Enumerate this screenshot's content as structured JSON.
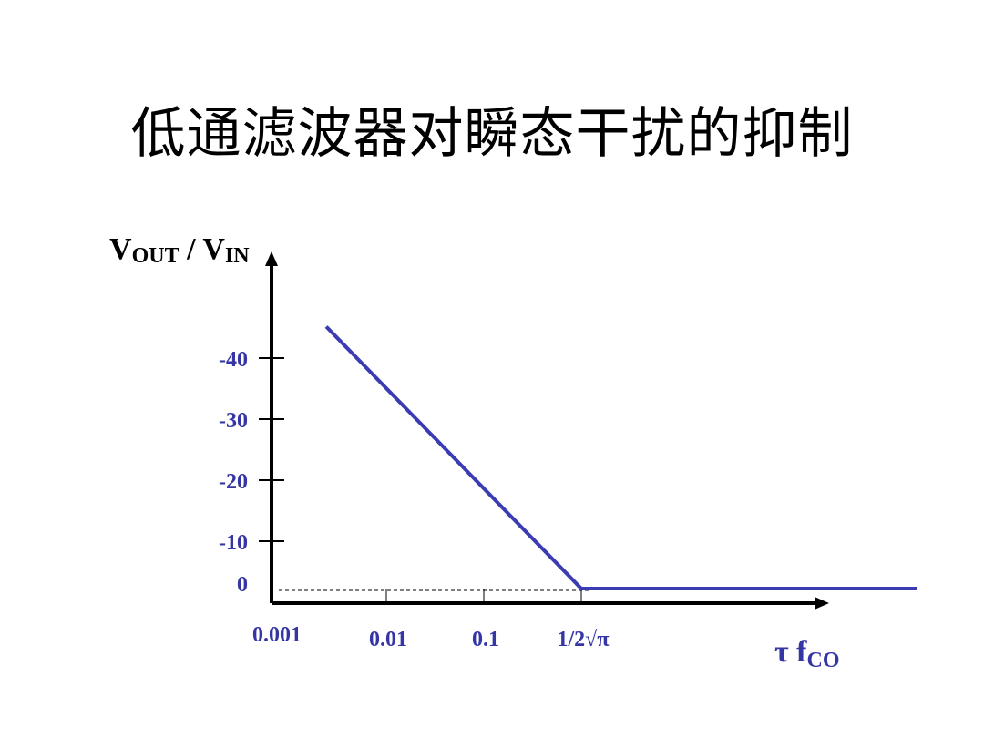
{
  "title": "低通滤波器对瞬态干扰的抑制",
  "chart_data": {
    "type": "line",
    "title": "低通滤波器对瞬态干扰的抑制",
    "ylabel": {
      "main": "V",
      "sub1": "OUT",
      "mid": " / V",
      "sub2": "IN"
    },
    "xlabel": {
      "main": "τ f",
      "sub": "CO"
    },
    "x_scale": "log",
    "x_ticks": [
      {
        "value": 0.001,
        "label": "0.001"
      },
      {
        "value": 0.01,
        "label": "0.01"
      },
      {
        "value": 0.1,
        "label": "0.1"
      },
      {
        "value": 0.282,
        "label": "1/2√π"
      }
    ],
    "y_ticks": [
      {
        "value": -40,
        "label": "-40"
      },
      {
        "value": -30,
        "label": "-30"
      },
      {
        "value": -20,
        "label": "-20"
      },
      {
        "value": -10,
        "label": "-10"
      },
      {
        "value": 0,
        "label": "0"
      }
    ],
    "reference_line": {
      "y": 0,
      "style": "dashed"
    },
    "series": [
      {
        "points": [
          {
            "x": 0.003,
            "y": -45
          },
          {
            "x": 0.282,
            "y": 0
          },
          {
            "x": 10,
            "y": 0
          }
        ]
      }
    ],
    "grid": false,
    "colors": {
      "series": "#3b3bb3",
      "labels": "#3535a5",
      "axes": "#000000"
    }
  }
}
